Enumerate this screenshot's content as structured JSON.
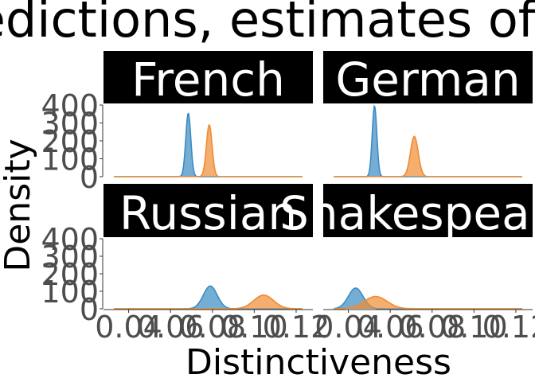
{
  "chart_data": {
    "type": "area",
    "title": "Predictions, estimates of g",
    "xlabel": "Distinctiveness",
    "ylabel": "Density",
    "facet_order": [
      "French",
      "German",
      "Russian",
      "Shakespeare"
    ],
    "y_ticks": [
      0,
      100,
      200,
      300,
      400
    ],
    "ylim": [
      0,
      400
    ],
    "x_ticks": [
      "0.04",
      "0.06",
      "0.08",
      "0.10",
      "0.12"
    ],
    "x_tick_values": [
      0.04,
      0.06,
      0.08,
      0.1,
      0.12
    ],
    "xlim": [
      0.028,
      0.128
    ],
    "colors": {
      "blue": "#3b8bc2",
      "orange": "#f08b32"
    },
    "panels": [
      {
        "label": "French",
        "series": [
          {
            "color": "blue",
            "mean": 0.0685,
            "sd": 0.0012,
            "peak": 355
          },
          {
            "color": "orange",
            "mean": 0.0785,
            "sd": 0.00135,
            "peak": 290
          }
        ]
      },
      {
        "label": "German",
        "series": [
          {
            "color": "blue",
            "mean": 0.0525,
            "sd": 0.0011,
            "peak": 395
          },
          {
            "color": "orange",
            "mean": 0.0715,
            "sd": 0.00185,
            "peak": 225
          }
        ]
      },
      {
        "label": "Russian",
        "series": [
          {
            "color": "blue",
            "mean": 0.079,
            "sd": 0.0033,
            "peak": 130
          },
          {
            "color": "orange",
            "mean": 0.1045,
            "sd": 0.0047,
            "peak": 78
          }
        ]
      },
      {
        "label": "Shakespeare",
        "series": [
          {
            "color": "blue",
            "mean": 0.0435,
            "sd": 0.0035,
            "peak": 118
          },
          {
            "color": "orange",
            "mean": 0.053,
            "sd": 0.0055,
            "peak": 70
          }
        ]
      }
    ]
  }
}
